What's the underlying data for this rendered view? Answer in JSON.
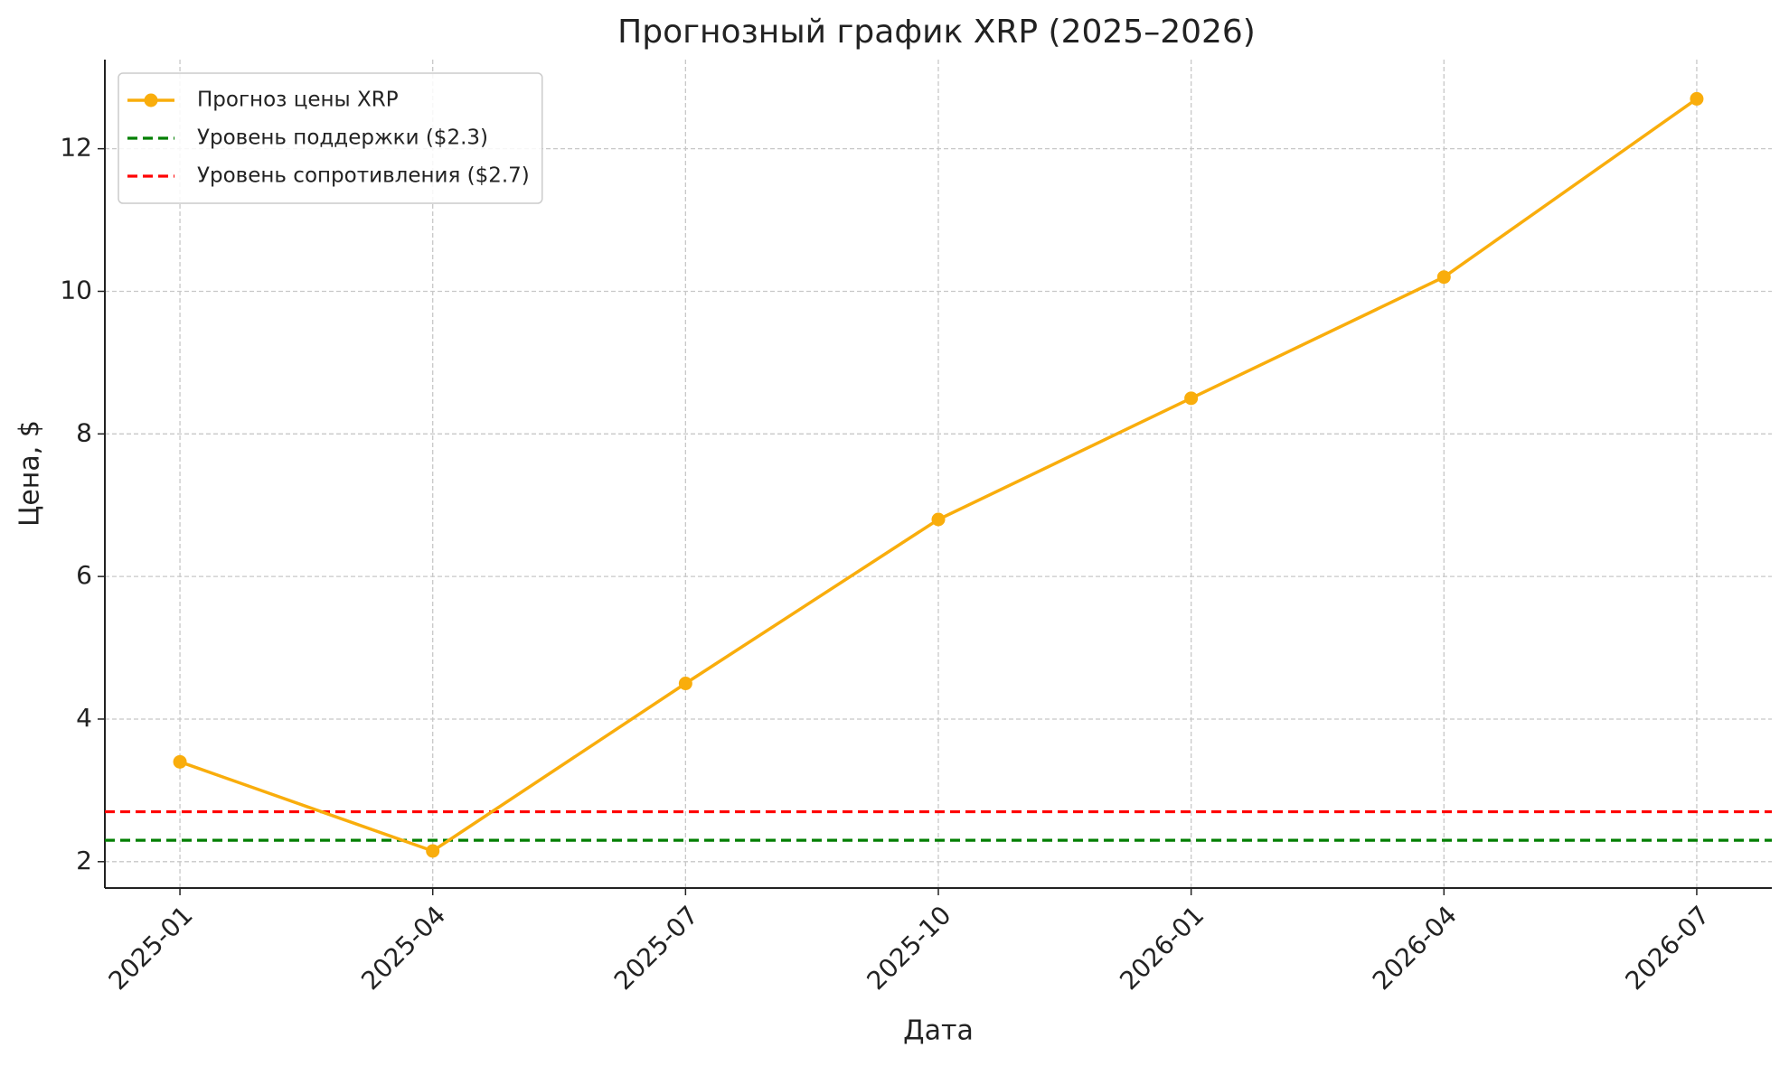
{
  "chart_data": {
    "type": "line",
    "title": "Прогнозный график XRP (2025–2026)",
    "x_label": "Дата",
    "y_label": "Цена, $",
    "categories": [
      "2025-01",
      "2025-04",
      "2025-07",
      "2025-10",
      "2026-01",
      "2026-04",
      "2026-07"
    ],
    "series": [
      {
        "name": "Прогноз цены XRP",
        "color": "#f9ad0c",
        "values": [
          3.4,
          2.15,
          4.5,
          6.8,
          8.5,
          10.2,
          12.7
        ]
      }
    ],
    "reference_lines": [
      {
        "name": "Уровень поддержки ($2.3)",
        "value": 2.3,
        "color": "#007f00"
      },
      {
        "name": "Уровень сопротивления ($2.7)",
        "value": 2.7,
        "color": "#ff0000"
      }
    ],
    "ylim": [
      1.63,
      13.25
    ],
    "yticks": [
      2,
      4,
      6,
      8,
      10,
      12
    ],
    "grid": true,
    "legend": "upper left"
  }
}
